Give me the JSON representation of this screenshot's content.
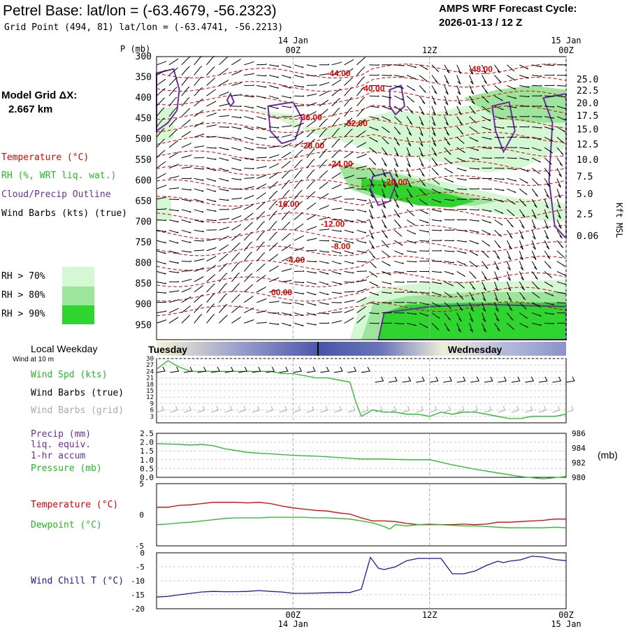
{
  "header": {
    "title": "Petrel Base:  lat/lon = (-63.4679, -56.2323)",
    "subtitle": "Grid Point (494, 81) lat/lon = (-63.4741, -56.2213)",
    "cycle_label": "AMPS WRF Forecast Cycle:",
    "cycle_value": "2026-01-13 / 12  Z"
  },
  "sidebar": {
    "model_grid": "Model Grid ΔX:",
    "model_grid_value": "2.667 km",
    "legend_temperature": "Temperature (°C)",
    "legend_rh": "RH (%, WRT liq. wat.)",
    "legend_cloud": "Cloud/Precip Outline",
    "legend_wind": "Wind Barbs (kts) (true)",
    "rh_levels": [
      "RH > 70%",
      "RH > 80%",
      "RH > 90%"
    ],
    "local_weekday": "Local Weekday",
    "wind_at": "Wind at 10 m",
    "wind_spd": "Wind Spd (kts)",
    "wind_true": "Wind Barbs (true)",
    "wind_grid": "Wind Barbs (grid)",
    "precip": "Precip (mm)",
    "precip2": "liq. equiv.",
    "precip3": "1-hr accum",
    "pressure": "Pressure (mb)",
    "temp": "Temperature (°C)",
    "dewpoint": "Dewpoint (°C)",
    "windchill": "Wind Chill T (°C)"
  },
  "colors": {
    "temperature": "#e00000",
    "rh": "#22bb22",
    "cloud": "#6a2f9a",
    "wind": "#000000",
    "grid_wind": "#aaaaaa",
    "windchill": "#1a1aa0",
    "rh70": "#d4f7d4",
    "rh80": "#9de59d",
    "rh90": "#2fd52f"
  },
  "chart_data": [
    {
      "type": "cross-section",
      "title": "Vertical time section",
      "top_time_labels": [
        {
          "t": 12,
          "line1": "14 Jan",
          "line2": "00Z"
        },
        {
          "t": 24,
          "line1": "",
          "line2": "12Z"
        },
        {
          "t": 36,
          "line1": "15 Jan",
          "line2": "00Z"
        }
      ],
      "ylabel_left": "P (mb)",
      "ylabel_right": "Kft MSL",
      "pressure_ticks": [
        300,
        350,
        400,
        450,
        500,
        550,
        600,
        650,
        700,
        750,
        800,
        850,
        900,
        950
      ],
      "height_ticks": [
        {
          "label": "25.0",
          "p": 356
        },
        {
          "label": "22.5",
          "p": 383
        },
        {
          "label": "20.0",
          "p": 413
        },
        {
          "label": "17.5",
          "p": 444
        },
        {
          "label": "15.0",
          "p": 477
        },
        {
          "label": "12.5",
          "p": 513
        },
        {
          "label": "10.0",
          "p": 550
        },
        {
          "label": "7.5",
          "p": 591
        },
        {
          "label": "5.0",
          "p": 633
        },
        {
          "label": "2.5",
          "p": 682
        },
        {
          "label": "0.06",
          "p": 735
        }
      ],
      "temperature_labels": [
        {
          "text": "-44.00",
          "t": 16.0,
          "p": 347
        },
        {
          "text": "-48.00",
          "t": 28.5,
          "p": 337
        },
        {
          "text": "-40.00",
          "t": 19.0,
          "p": 384
        },
        {
          "text": "-36.00",
          "t": 13.5,
          "p": 454
        },
        {
          "text": "-32.00",
          "t": 17.5,
          "p": 468
        },
        {
          "text": "-28.00",
          "t": 13.7,
          "p": 522
        },
        {
          "text": "-24.00",
          "t": 16.2,
          "p": 566
        },
        {
          "text": "-20.00",
          "t": 21.0,
          "p": 610
        },
        {
          "text": "-16.00",
          "t": 11.5,
          "p": 664
        },
        {
          "text": "-12.00",
          "t": 15.5,
          "p": 712
        },
        {
          "text": "-8.00",
          "t": 16.2,
          "p": 766
        },
        {
          "text": "-4.00",
          "t": 12.2,
          "p": 799
        },
        {
          "text": "00.00",
          "t": 11.0,
          "p": 878
        }
      ]
    },
    {
      "type": "line",
      "title": "Wind Spd (kts)",
      "ylabel": "kts",
      "ylim": [
        0,
        30
      ],
      "yticks": [
        3,
        6,
        9,
        12,
        15,
        18,
        21,
        24,
        27,
        30
      ],
      "weekday_labels": [
        {
          "t": 0.5,
          "text": "Tuesday"
        },
        {
          "t": 24.5,
          "text": "Wednesday"
        }
      ],
      "series": [
        {
          "name": "Wind Spd",
          "color": "#22bb22",
          "x": [
            0,
            1,
            2,
            3,
            4,
            5,
            6,
            7,
            8,
            9,
            10,
            11,
            12,
            13,
            14,
            15,
            16,
            17,
            17.5,
            18,
            19,
            20,
            21,
            22,
            23,
            24,
            25,
            26,
            27,
            28,
            29,
            30,
            31,
            32,
            33,
            34,
            35,
            36
          ],
          "y": [
            25,
            29,
            26,
            24,
            24,
            24,
            24,
            24,
            24,
            24,
            24,
            23,
            23,
            22,
            21,
            21,
            20,
            19,
            10,
            3,
            6,
            5,
            5,
            4,
            4,
            3,
            5,
            4,
            5,
            5,
            4,
            3,
            2,
            2,
            3,
            3,
            3,
            4
          ]
        }
      ]
    },
    {
      "type": "line",
      "title": "Precip / Pressure",
      "ylim_left": [
        0,
        2.5
      ],
      "yticks_left": [
        0,
        0.5,
        1.0,
        1.5,
        2.0,
        2.5
      ],
      "ylim_right": [
        980,
        986
      ],
      "yticks_right": [
        980,
        982,
        984,
        986
      ],
      "right_unit": "(mb)",
      "series": [
        {
          "name": "Pressure (mb)",
          "color": "#22bb22",
          "x": [
            0,
            2,
            3,
            4,
            5,
            6,
            8,
            10,
            12,
            14,
            16,
            18,
            20,
            22,
            24,
            26,
            28,
            30,
            32,
            34,
            36
          ],
          "y": [
            984.6,
            984.5,
            984.4,
            984.5,
            984.3,
            983.9,
            983.4,
            983.2,
            983.0,
            982.9,
            982.7,
            982.5,
            982.5,
            982.4,
            982.4,
            981.7,
            981.1,
            980.6,
            980.1,
            979.8,
            980.1
          ]
        }
      ]
    },
    {
      "type": "line",
      "title": "Temperature / Dewpoint",
      "ylim": [
        -5,
        5
      ],
      "yticks": [
        -5,
        0,
        5
      ],
      "series": [
        {
          "name": "Temperature (°C)",
          "color": "#e00000",
          "x": [
            0,
            1,
            2,
            3,
            4,
            5,
            6,
            7,
            8,
            9,
            10,
            11,
            12,
            13,
            14,
            15,
            16,
            17,
            18,
            19,
            20,
            21,
            22,
            23,
            24,
            25,
            26,
            27,
            28,
            29,
            30,
            31,
            32,
            33,
            34,
            35,
            36
          ],
          "y": [
            1.2,
            1.2,
            1.5,
            1.6,
            1.8,
            2.0,
            2.0,
            2.0,
            1.9,
            2.0,
            1.8,
            1.4,
            1.1,
            0.9,
            0.7,
            0.6,
            0.3,
            0.1,
            -0.5,
            -1.0,
            -1.0,
            -1.1,
            -1.4,
            -1.6,
            -1.6,
            -1.6,
            -1.6,
            -1.5,
            -1.6,
            -1.5,
            -1.2,
            -1.2,
            -1.1,
            -1.0,
            -0.9,
            -0.7,
            -0.7
          ]
        },
        {
          "name": "Dewpoint (°C)",
          "color": "#22bb22",
          "x": [
            0,
            1,
            2,
            3,
            4,
            5,
            6,
            7,
            8,
            9,
            10,
            11,
            12,
            13,
            14,
            15,
            16,
            17,
            18,
            19,
            20,
            20.5,
            21,
            22,
            23,
            24,
            25,
            26,
            27,
            28,
            29,
            30,
            31,
            32,
            33,
            34,
            35,
            36
          ],
          "y": [
            -1.6,
            -1.5,
            -1.3,
            -1.2,
            -1.0,
            -0.8,
            -0.6,
            -0.5,
            -0.5,
            -0.5,
            -0.4,
            -0.4,
            -0.4,
            -0.4,
            -0.5,
            -0.5,
            -0.6,
            -0.7,
            -1.0,
            -1.3,
            -1.9,
            -2.3,
            -1.6,
            -1.8,
            -1.6,
            -1.5,
            -1.6,
            -1.7,
            -1.8,
            -1.8,
            -1.9,
            -2.0,
            -2.1,
            -2.1,
            -2.1,
            -2.1,
            -2.0,
            -2.1
          ]
        }
      ]
    },
    {
      "type": "line",
      "title": "Wind Chill T (°C)",
      "ylim": [
        -20,
        0
      ],
      "yticks": [
        -20,
        -15,
        -10,
        -5,
        0
      ],
      "bottom_time_labels": [
        {
          "t": 12,
          "line1": "00Z",
          "line2": "14 Jan"
        },
        {
          "t": 24,
          "line1": "12Z",
          "line2": ""
        },
        {
          "t": 36,
          "line1": "00Z",
          "line2": "15 Jan"
        }
      ],
      "series": [
        {
          "name": "Wind Chill T",
          "color": "#1a1aa0",
          "x": [
            0,
            1,
            2,
            3,
            4,
            5,
            6,
            7,
            8,
            9,
            10,
            11,
            12,
            13,
            14,
            15,
            16,
            17,
            18,
            18.8,
            19.5,
            20,
            21,
            22,
            23,
            24,
            25,
            26,
            27,
            28,
            29,
            30,
            30.5,
            31,
            32,
            33,
            34,
            35,
            36
          ],
          "y": [
            -15.8,
            -15.6,
            -15,
            -14.5,
            -14,
            -13.8,
            -13.9,
            -13.9,
            -13.8,
            -13.5,
            -13.8,
            -14.0,
            -14.5,
            -14.5,
            -14.4,
            -14.3,
            -14.2,
            -14.2,
            -13,
            -1.6,
            -5.5,
            -6,
            -5,
            -2.8,
            -2,
            -2,
            -2,
            -7.5,
            -7.5,
            -6.5,
            -4.5,
            -3,
            -3.5,
            -3,
            -2.5,
            -1.2,
            -1.5,
            -2.4,
            -2.8
          ]
        }
      ]
    }
  ]
}
